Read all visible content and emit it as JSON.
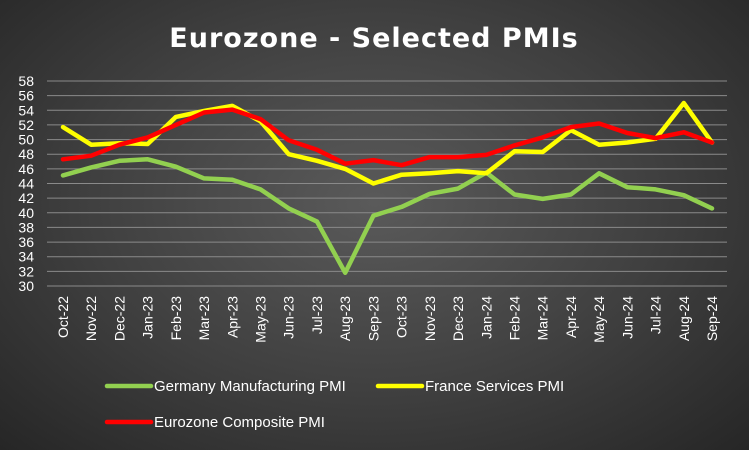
{
  "chart_data": {
    "type": "line",
    "title": "Eurozone - Selected PMIs",
    "xlabel": "",
    "ylabel": "",
    "ylim": [
      30,
      58
    ],
    "ytick_step": 2,
    "grid": true,
    "legend_position": "bottom",
    "categories": [
      "Oct-22",
      "Nov-22",
      "Dec-22",
      "Jan-23",
      "Feb-23",
      "Mar-23",
      "Apr-23",
      "May-23",
      "Jun-23",
      "Jul-23",
      "Aug-23",
      "Sep-23",
      "Oct-23",
      "Nov-23",
      "Dec-23",
      "Jan-24",
      "Feb-24",
      "Mar-24",
      "Apr-24",
      "May-24",
      "Jun-24",
      "Jul-24",
      "Aug-24",
      "Sep-24"
    ],
    "series": [
      {
        "name": "Germany Manufacturing PMI",
        "color": "#92D050",
        "values": [
          45.1,
          46.2,
          47.1,
          47.3,
          46.3,
          44.7,
          44.5,
          43.2,
          40.6,
          38.8,
          31.8,
          39.6,
          40.8,
          42.6,
          43.3,
          45.5,
          42.5,
          41.9,
          42.5,
          45.4,
          43.5,
          43.2,
          42.4,
          40.6
        ]
      },
      {
        "name": "France Services PMI",
        "color": "#FFFF00",
        "values": [
          51.7,
          49.3,
          49.5,
          49.4,
          53.1,
          53.9,
          54.6,
          52.5,
          48.0,
          47.1,
          46.0,
          44.0,
          45.2,
          45.4,
          45.7,
          45.4,
          48.4,
          48.3,
          51.3,
          49.3,
          49.6,
          50.1,
          55.0,
          49.6
        ]
      },
      {
        "name": "Eurozone Composite PMI",
        "color": "#FF0000",
        "values": [
          47.3,
          47.8,
          49.3,
          50.3,
          52.0,
          53.7,
          54.1,
          52.8,
          49.9,
          48.6,
          46.7,
          47.2,
          46.5,
          47.6,
          47.6,
          47.9,
          49.2,
          50.3,
          51.7,
          52.2,
          50.9,
          50.2,
          51.0,
          49.6
        ]
      }
    ]
  }
}
